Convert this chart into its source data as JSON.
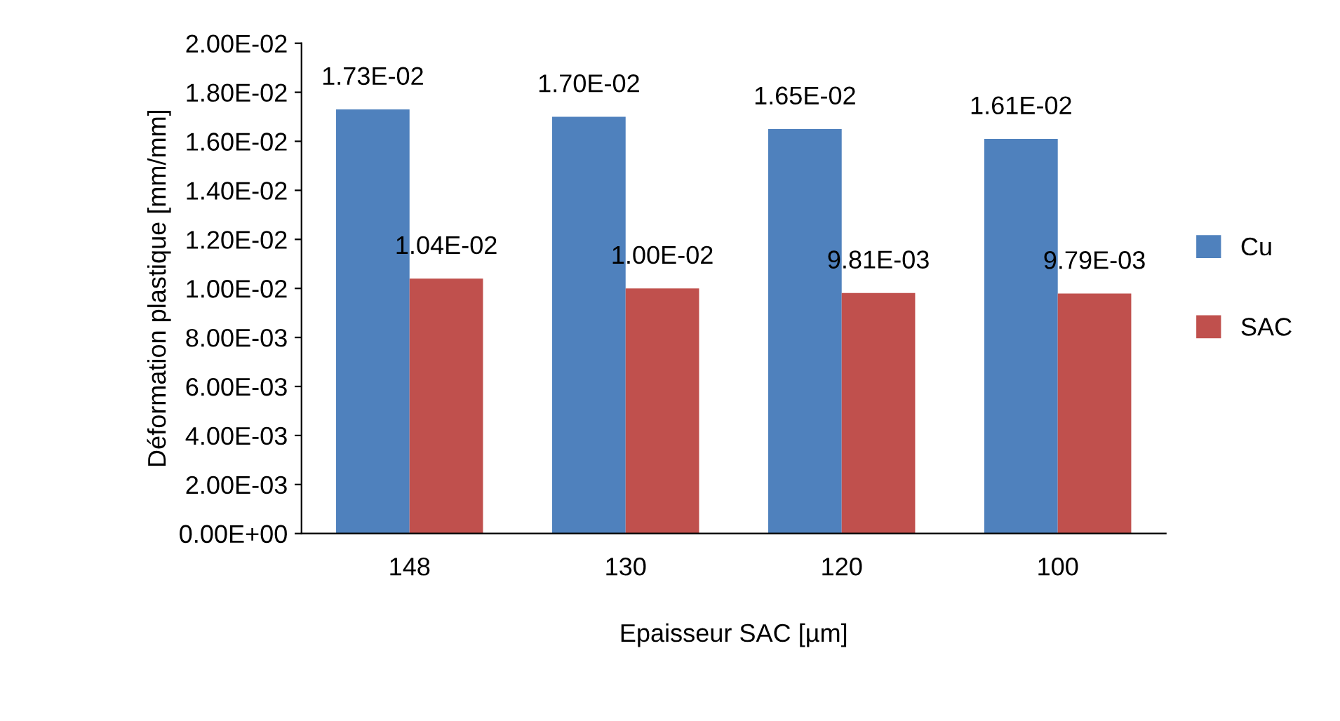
{
  "chart_data": {
    "type": "bar",
    "xlabel": "Epaisseur SAC [µm]",
    "ylabel": "Déformation plastique [mm/mm]",
    "categories": [
      "148",
      "130",
      "120",
      "100"
    ],
    "series": [
      {
        "name": "Cu",
        "color": "#4f81bd",
        "values": [
          0.0173,
          0.017,
          0.0165,
          0.0161
        ],
        "value_labels": [
          "1.73E-02",
          "1.70E-02",
          "1.65E-02",
          "1.61E-02"
        ]
      },
      {
        "name": "SAC",
        "color": "#c0504d",
        "values": [
          0.0104,
          0.01,
          0.00981,
          0.00979
        ],
        "value_labels": [
          "1.04E-02",
          "1.00E-02",
          "9.81E-03",
          "9.79E-03"
        ]
      }
    ],
    "ylim": [
      0,
      0.02
    ],
    "yticks": [
      {
        "value": 0,
        "label": "0.00E+00"
      },
      {
        "value": 0.002,
        "label": "2.00E-03"
      },
      {
        "value": 0.004,
        "label": "4.00E-03"
      },
      {
        "value": 0.006,
        "label": "6.00E-03"
      },
      {
        "value": 0.008,
        "label": "8.00E-03"
      },
      {
        "value": 0.01,
        "label": "1.00E-02"
      },
      {
        "value": 0.012,
        "label": "1.20E-02"
      },
      {
        "value": 0.014,
        "label": "1.40E-02"
      },
      {
        "value": 0.016,
        "label": "1.60E-02"
      },
      {
        "value": 0.018,
        "label": "1.80E-02"
      },
      {
        "value": 0.02,
        "label": "2.00E-02"
      }
    ],
    "grid": false,
    "legend": "right"
  }
}
